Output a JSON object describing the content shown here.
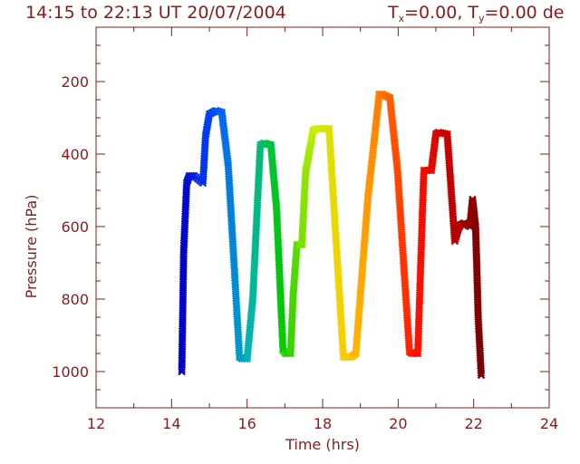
{
  "chart_data": {
    "type": "line",
    "title": "14:15 to 22:13 UT 20/07/2004",
    "title_extra": {
      "tx_label": "T",
      "tx_sub": "x",
      "tx_value": "=0.00,",
      "ty_label": "T",
      "ty_sub": "y",
      "ty_value": "=0.00",
      "tail": "de"
    },
    "xlabel": "Time  (hrs)",
    "ylabel": "Pressure  (hPa)",
    "xlim": [
      12,
      24
    ],
    "ylim": [
      1100,
      50
    ],
    "y_inverted": true,
    "x_ticks": [
      12,
      14,
      16,
      18,
      20,
      22,
      24
    ],
    "x_tick_labels": [
      "12",
      "14",
      "16",
      "18",
      "20",
      "22",
      "24"
    ],
    "y_ticks": [
      200,
      400,
      600,
      800,
      1000
    ],
    "y_tick_labels": [
      "200",
      "400",
      "600",
      "800",
      "1000"
    ],
    "grid": false,
    "axis_color": "#8b1a1a",
    "marker": "x",
    "color_scale": "rainbow by time (blue to dark red)",
    "colors": [
      "#0000c8",
      "#0050ff",
      "#00b4b4",
      "#00c800",
      "#c8f000",
      "#ffc800",
      "#ff7800",
      "#ff1400",
      "#c80000",
      "#780000"
    ],
    "series": [
      {
        "x": [
          14.27,
          14.32,
          14.4,
          14.47,
          14.6,
          14.83,
          14.9,
          15.0,
          15.17,
          15.33,
          15.5,
          15.8,
          15.88,
          16.0,
          16.15,
          16.35,
          16.45,
          16.63,
          16.78,
          16.95,
          17.02,
          17.15,
          17.22,
          17.32,
          17.45,
          17.55,
          17.75,
          17.85,
          18.17,
          18.55,
          18.62,
          18.75,
          18.88,
          19.2,
          19.5,
          19.58,
          19.78,
          19.98,
          20.3,
          20.37,
          20.52,
          20.68,
          20.88,
          21.0,
          21.07,
          21.3,
          21.5,
          21.6,
          21.65,
          21.75,
          21.9,
          21.97,
          22.05,
          22.08,
          22.12,
          22.2
        ],
        "y": [
          1000,
          670,
          480,
          460,
          460,
          480,
          350,
          290,
          280,
          285,
          430,
          960,
          965,
          965,
          800,
          375,
          370,
          375,
          550,
          940,
          950,
          950,
          790,
          650,
          650,
          450,
          335,
          330,
          330,
          960,
          960,
          960,
          950,
          520,
          235,
          235,
          245,
          440,
          945,
          950,
          950,
          445,
          445,
          345,
          340,
          345,
          640,
          605,
          595,
          590,
          600,
          525,
          600,
          700,
          850,
          1010
        ]
      }
    ]
  }
}
